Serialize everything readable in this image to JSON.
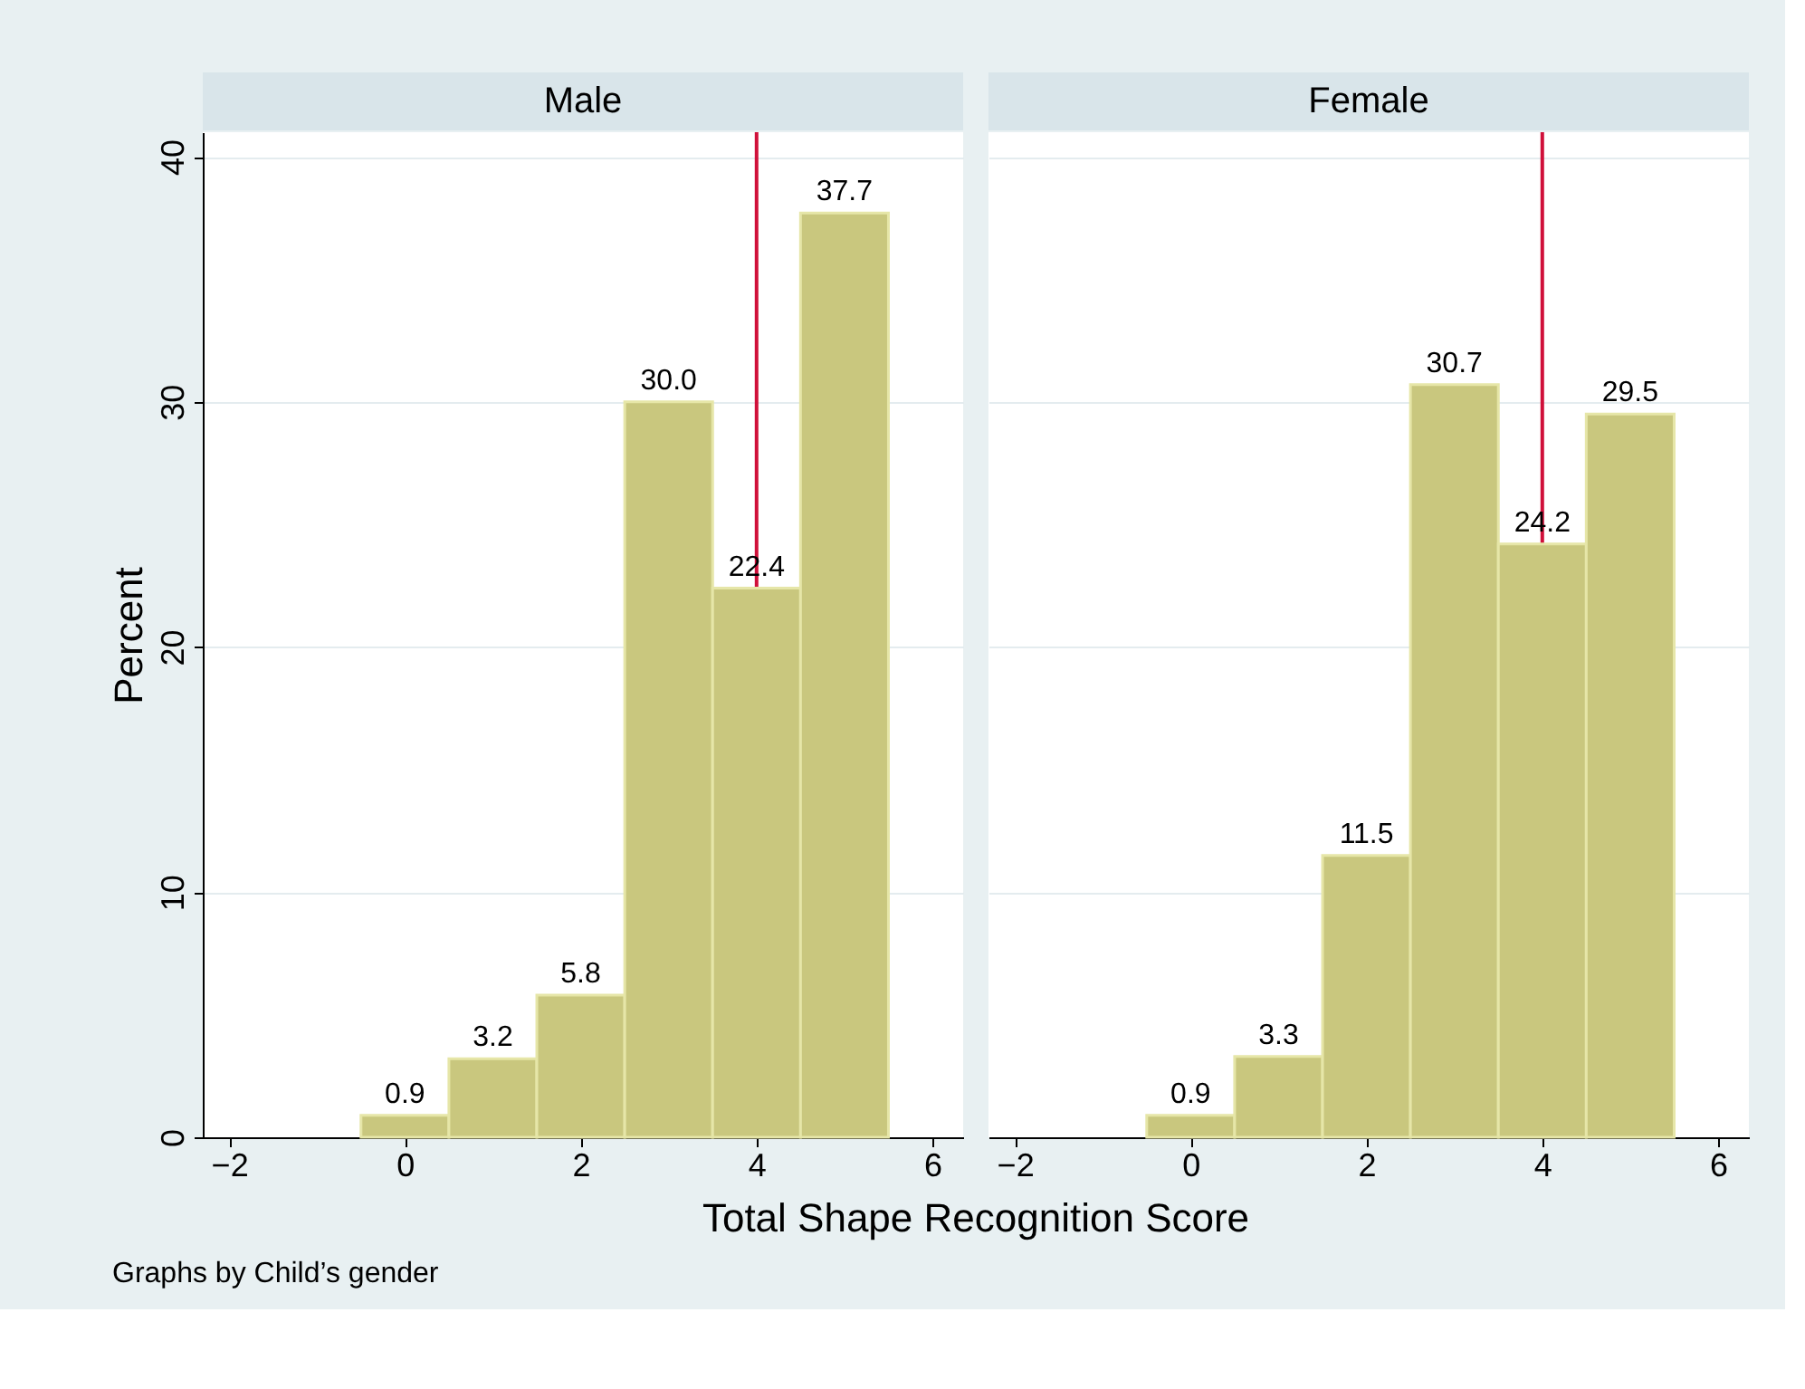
{
  "chart_data": [
    {
      "type": "histogram",
      "title": "Male",
      "ylabel": "Percent",
      "xlabel": "Total Shape Recognition Score",
      "bins": [
        -0.5,
        0.5,
        1.5,
        2.5,
        3.5,
        4.5,
        5.5
      ],
      "values": [
        0.9,
        3.2,
        5.8,
        30.0,
        22.4,
        37.7
      ],
      "value_labels": [
        "0.9",
        "3.2",
        "5.8",
        "30.0",
        "22.4",
        "37.7"
      ],
      "color": "#c9c77e",
      "xlim": [
        -2.3,
        6.35
      ],
      "ylim": [
        0,
        41
      ],
      "xticks": [
        -2,
        0,
        2,
        4,
        6
      ],
      "yticks": [
        0,
        10,
        20,
        30,
        40
      ],
      "grid": "y",
      "ref_lines": [
        {
          "axis": "x",
          "value": 4,
          "color": "#d0103a"
        }
      ]
    },
    {
      "type": "histogram",
      "title": "Female",
      "bins": [
        -0.5,
        0.5,
        1.5,
        2.5,
        3.5,
        4.5,
        5.5
      ],
      "values": [
        0.9,
        3.3,
        11.5,
        30.7,
        24.2,
        29.5
      ],
      "value_labels": [
        "0.9",
        "3.3",
        "11.5",
        "30.7",
        "24.2",
        "29.5"
      ],
      "color": "#c9c77e",
      "xlim": [
        -2.3,
        6.35
      ],
      "ylim": [
        0,
        41
      ],
      "xticks": [
        -2,
        0,
        2,
        4,
        6
      ],
      "yticks": [
        0,
        10,
        20,
        30,
        40
      ],
      "grid": "y",
      "tick_labels": "x",
      "annotations": [
        "Graphs by Child’s gender"
      ],
      "ref_lines": [
        {
          "axis": "x",
          "value": 4,
          "color": "#d0103a"
        }
      ]
    }
  ]
}
